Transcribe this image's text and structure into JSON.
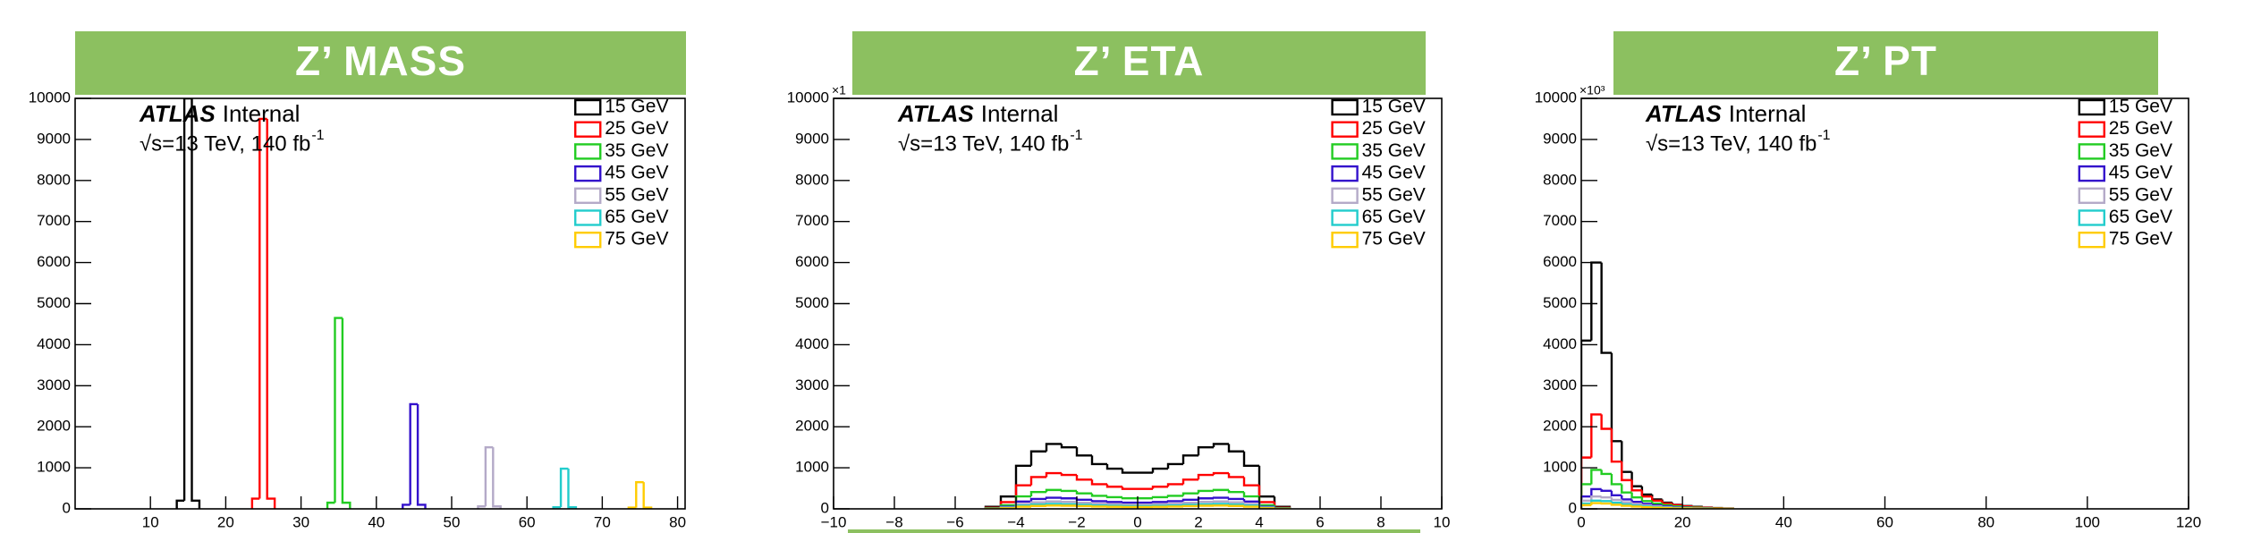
{
  "chart_data": [
    {
      "type": "histogram",
      "title": "Z’ MASS",
      "experiment": "ATLAS",
      "status": "Internal",
      "energy": "√s=13 TeV, 140 fb",
      "lumi_power": "-1",
      "xlim": [
        0,
        81
      ],
      "xticks": [
        10,
        20,
        30,
        40,
        50,
        60,
        70,
        80
      ],
      "ylim": [
        0,
        10000
      ],
      "yticks": [
        0,
        1000,
        2000,
        3000,
        4000,
        5000,
        6000,
        7000,
        8000,
        9000,
        10000
      ],
      "series": [
        {
          "name": "15 GeV",
          "color": "#000000",
          "bins": [
            13.5,
            14.5,
            15.5,
            16.5
          ],
          "values": [
            200,
            10000,
            200
          ]
        },
        {
          "name": "25 GeV",
          "color": "#ff0000",
          "bins": [
            23.5,
            24.5,
            25.5,
            26.5
          ],
          "values": [
            250,
            9500,
            250
          ]
        },
        {
          "name": "35 GeV",
          "color": "#22cc22",
          "bins": [
            33.5,
            34.5,
            35.5,
            36.5
          ],
          "values": [
            150,
            4650,
            150
          ]
        },
        {
          "name": "45 GeV",
          "color": "#3311cc",
          "bins": [
            43.5,
            44.5,
            45.5,
            46.5
          ],
          "values": [
            100,
            2550,
            100
          ]
        },
        {
          "name": "55 GeV",
          "color": "#b4aac8",
          "bins": [
            53.5,
            54.5,
            55.5,
            56.5
          ],
          "values": [
            60,
            1500,
            60
          ]
        },
        {
          "name": "65 GeV",
          "color": "#22cccc",
          "bins": [
            63.5,
            64.5,
            65.5,
            66.5
          ],
          "values": [
            40,
            980,
            40
          ]
        },
        {
          "name": "75 GeV",
          "color": "#ffcc00",
          "bins": [
            73.5,
            74.5,
            75.5,
            76.5
          ],
          "values": [
            30,
            650,
            30
          ]
        }
      ]
    },
    {
      "type": "histogram",
      "title": "Z’ ETA",
      "experiment": "ATLAS",
      "status": "Internal",
      "energy": "√s=13 TeV, 140 fb",
      "lumi_power": "-1",
      "y_multiplier": "×1",
      "xlim": [
        -10,
        10
      ],
      "xticks": [
        {
          "value": -10,
          "label": "−10"
        },
        {
          "value": -8,
          "label": "−8"
        },
        {
          "value": -6,
          "label": "−6"
        },
        {
          "value": -4,
          "label": "−4"
        },
        {
          "value": -2,
          "label": "−2"
        },
        0,
        2,
        4,
        6,
        8,
        10
      ],
      "ylim": [
        0,
        10000
      ],
      "yticks": [
        0,
        1000,
        2000,
        3000,
        4000,
        5000,
        6000,
        7000,
        8000,
        9000,
        10000
      ],
      "bins": [
        -5,
        -4.5,
        -4,
        -3.5,
        -3,
        -2.5,
        -2,
        -1.5,
        -1,
        -0.5,
        0,
        0.5,
        1,
        1.5,
        2,
        2.5,
        3,
        3.5,
        4,
        4.5,
        5
      ],
      "series": [
        {
          "name": "15 GeV",
          "color": "#000000",
          "values": [
            50,
            300,
            1050,
            1400,
            1580,
            1500,
            1300,
            1090,
            980,
            880,
            880,
            980,
            1090,
            1300,
            1500,
            1580,
            1400,
            1050,
            300,
            50
          ]
        },
        {
          "name": "25 GeV",
          "color": "#ff0000",
          "values": [
            26,
            165,
            574,
            774,
            870,
            827,
            713,
            600,
            539,
            487,
            487,
            539,
            600,
            713,
            827,
            870,
            774,
            574,
            165,
            26
          ]
        },
        {
          "name": "35 GeV",
          "color": "#22cc22",
          "values": [
            14,
            87,
            304,
            409,
            460,
            437,
            377,
            317,
            285,
            258,
            258,
            285,
            317,
            377,
            437,
            460,
            409,
            304,
            87,
            14
          ]
        },
        {
          "name": "45 GeV",
          "color": "#3311cc",
          "values": [
            8,
            51,
            178,
            240,
            270,
            256,
            221,
            186,
            167,
            151,
            151,
            167,
            186,
            221,
            256,
            270,
            240,
            178,
            51,
            8
          ]
        },
        {
          "name": "55 GeV",
          "color": "#b4aac8",
          "values": [
            5,
            34,
            119,
            160,
            180,
            171,
            148,
            124,
            112,
            101,
            101,
            112,
            124,
            148,
            171,
            180,
            160,
            119,
            34,
            5
          ]
        },
        {
          "name": "65 GeV",
          "color": "#22cccc",
          "values": [
            4,
            23,
            79,
            107,
            120,
            114,
            98,
            83,
            74,
            67,
            67,
            74,
            83,
            98,
            114,
            120,
            107,
            79,
            23,
            4
          ]
        },
        {
          "name": "75 GeV",
          "color": "#ffcc00",
          "values": [
            2,
            15,
            53,
            71,
            80,
            76,
            66,
            55,
            50,
            45,
            45,
            50,
            55,
            66,
            76,
            80,
            71,
            53,
            15,
            2
          ]
        }
      ]
    },
    {
      "type": "histogram",
      "title": "Z’ PT",
      "experiment": "ATLAS",
      "status": "Internal",
      "energy": "√s=13 TeV, 140 fb",
      "lumi_power": "-1",
      "y_multiplier": "×10³",
      "xlim": [
        0,
        120
      ],
      "xticks": [
        0,
        20,
        40,
        60,
        80,
        100,
        120
      ],
      "ylim": [
        0,
        10000
      ],
      "yticks": [
        0,
        1000,
        2000,
        3000,
        4000,
        5000,
        6000,
        7000,
        8000,
        9000,
        10000
      ],
      "bins": [
        0,
        2,
        4,
        6,
        8,
        10,
        12,
        14,
        16,
        18,
        20,
        22,
        24,
        26,
        28,
        30
      ],
      "series": [
        {
          "name": "15 GeV",
          "color": "#000000",
          "values": [
            4100,
            6000,
            3800,
            1650,
            900,
            550,
            350,
            230,
            150,
            100,
            70,
            50,
            30,
            20,
            10
          ]
        },
        {
          "name": "25 GeV",
          "color": "#ff0000",
          "values": [
            1250,
            2300,
            1950,
            1150,
            700,
            450,
            300,
            200,
            130,
            90,
            60,
            40,
            25,
            15,
            8
          ]
        },
        {
          "name": "35 GeV",
          "color": "#22cc22",
          "values": [
            600,
            950,
            850,
            600,
            400,
            280,
            190,
            130,
            90,
            60,
            40,
            28,
            18,
            10,
            5
          ]
        },
        {
          "name": "45 GeV",
          "color": "#3311cc",
          "values": [
            300,
            480,
            440,
            330,
            230,
            170,
            120,
            85,
            60,
            40,
            28,
            18,
            12,
            7,
            4
          ]
        },
        {
          "name": "55 GeV",
          "color": "#b4aac8",
          "values": [
            200,
            300,
            280,
            220,
            160,
            120,
            85,
            60,
            42,
            28,
            20,
            13,
            8,
            5,
            3
          ]
        },
        {
          "name": "65 GeV",
          "color": "#22cccc",
          "values": [
            130,
            200,
            190,
            150,
            110,
            80,
            58,
            40,
            28,
            19,
            13,
            9,
            6,
            4,
            2
          ]
        },
        {
          "name": "75 GeV",
          "color": "#ffcc00",
          "values": [
            90,
            140,
            130,
            100,
            75,
            55,
            40,
            28,
            19,
            13,
            9,
            6,
            4,
            3,
            1
          ]
        }
      ]
    }
  ]
}
